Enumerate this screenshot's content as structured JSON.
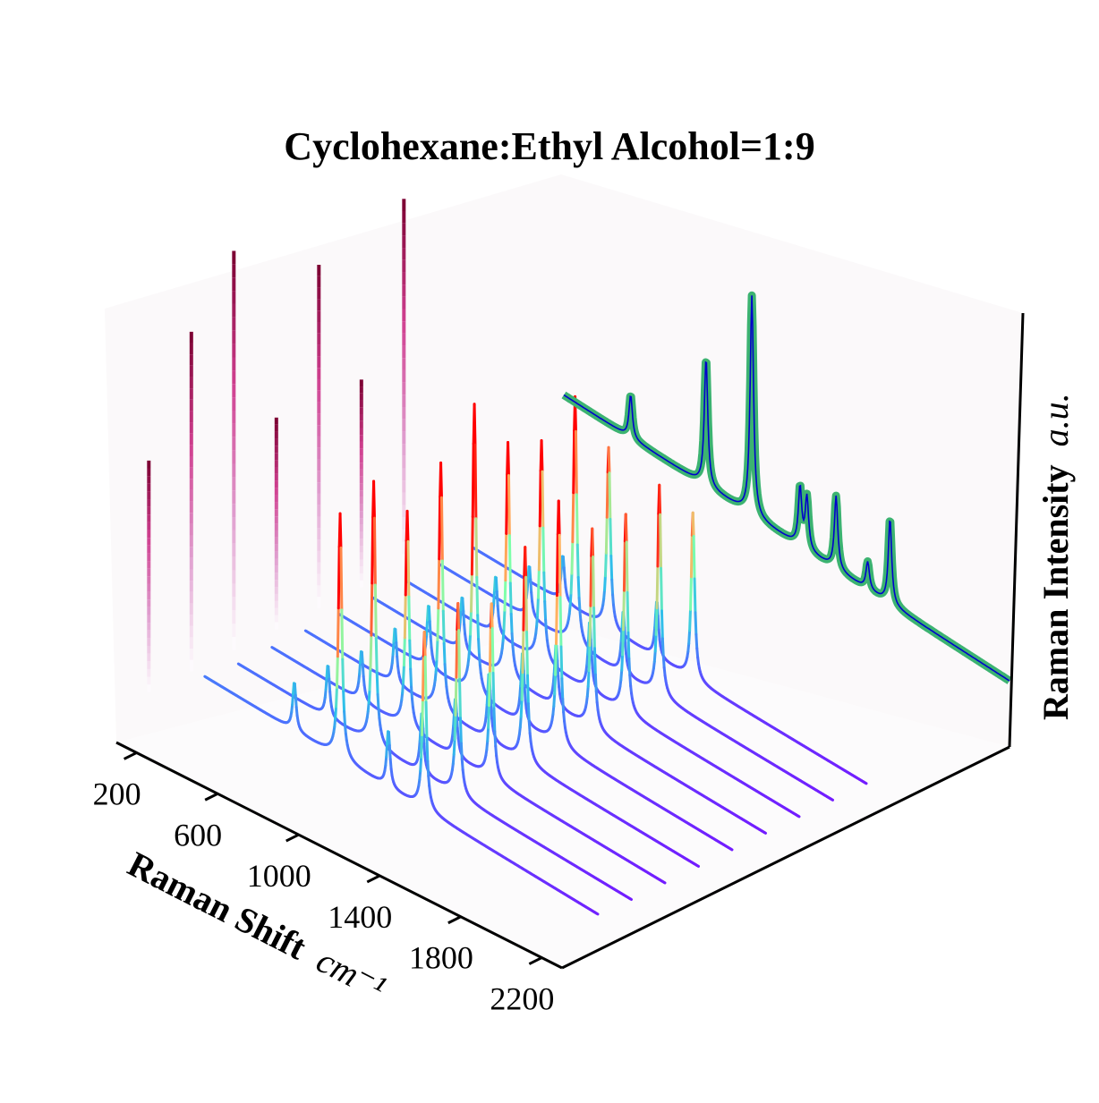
{
  "chart_data": {
    "type": "line",
    "view": "3d-waterfall",
    "title": "Cyclohexane:Ethyl Alcohol=1:9",
    "xlabel": "Raman Shift",
    "xlabel_unit": "cm⁻¹",
    "zlabel": "Raman Intensity",
    "zlabel_unit": "a.u.",
    "x_ticks": [
      200,
      600,
      1000,
      1400,
      1800,
      2200
    ],
    "xlim": [
      100,
      2300
    ],
    "depth_ticks": [],
    "zlim": [
      0,
      1
    ],
    "grid": false,
    "pane_color": "#fbf9fa",
    "colormaps": {
      "stems": [
        "#ffffff",
        "#e0a0d0",
        "#d04090",
        "#7a0030"
      ],
      "spectra": [
        "#8000ff",
        "#4f6bff",
        "#2fc1e9",
        "#7fffaa",
        "#ffb360",
        "#ff0000"
      ]
    },
    "stem_series": [
      {
        "x": 1300,
        "height": 0.58
      },
      {
        "x": 1300,
        "height": 0.85
      },
      {
        "x": 1300,
        "height": 1.0
      },
      {
        "x": 1300,
        "height": 0.53
      },
      {
        "x": 1300,
        "height": 0.86
      },
      {
        "x": 1300,
        "height": 0.52
      },
      {
        "x": 1300,
        "height": 0.92
      }
    ],
    "spectra_series": [
      {
        "offset": 0,
        "baseline": 0.38,
        "peaks": [
          [
            802,
            0.23
          ],
          [
            1028,
            0.26
          ],
          [
            1266,
            0.27
          ],
          [
            1444,
            0.34
          ],
          [
            1028,
            0.9
          ],
          [
            1444,
            0.5
          ]
        ]
      },
      {
        "offset": 1,
        "baseline": 0.36,
        "peaks": [
          [
            802,
            0.25
          ],
          [
            1028,
            0.3
          ],
          [
            1266,
            0.29
          ],
          [
            1444,
            0.36
          ],
          [
            1028,
            0.95
          ],
          [
            1444,
            0.55
          ]
        ]
      },
      {
        "offset": 2,
        "baseline": 0.36,
        "peaks": [
          [
            802,
            0.24
          ],
          [
            1028,
            0.28
          ],
          [
            1266,
            0.28
          ],
          [
            1444,
            0.35
          ],
          [
            1028,
            0.75
          ],
          [
            1444,
            0.48
          ]
        ]
      },
      {
        "offset": 3,
        "baseline": 0.36,
        "peaks": [
          [
            802,
            0.27
          ],
          [
            1028,
            0.33
          ],
          [
            1266,
            0.32
          ],
          [
            1444,
            0.42
          ],
          [
            1028,
            0.85
          ],
          [
            1444,
            0.6
          ]
        ]
      },
      {
        "offset": 4,
        "baseline": 0.36,
        "peaks": [
          [
            802,
            0.3
          ],
          [
            1028,
            0.38
          ],
          [
            1266,
            0.34
          ],
          [
            1444,
            0.46
          ],
          [
            1028,
            1.0
          ],
          [
            1444,
            0.7
          ]
        ]
      },
      {
        "offset": 5,
        "baseline": 0.36,
        "peaks": [
          [
            802,
            0.26
          ],
          [
            1028,
            0.32
          ],
          [
            1266,
            0.3
          ],
          [
            1444,
            0.4
          ],
          [
            1028,
            0.8
          ],
          [
            1444,
            0.55
          ]
        ]
      },
      {
        "offset": 6,
        "baseline": 0.36,
        "peaks": [
          [
            802,
            0.28
          ],
          [
            1028,
            0.35
          ],
          [
            1266,
            0.33
          ],
          [
            1444,
            0.44
          ],
          [
            1028,
            0.7
          ],
          [
            1444,
            0.5
          ]
        ]
      },
      {
        "offset": 7,
        "baseline": 0.36,
        "peaks": [
          [
            802,
            0.25
          ],
          [
            1028,
            0.3
          ],
          [
            1266,
            0.3
          ],
          [
            1444,
            0.38
          ],
          [
            1028,
            0.88
          ],
          [
            1444,
            0.62
          ]
        ]
      },
      {
        "offset": 8,
        "baseline": 0.36,
        "peaks": [
          [
            802,
            0.22
          ],
          [
            1028,
            0.26
          ],
          [
            1266,
            0.27
          ],
          [
            1444,
            0.34
          ],
          [
            1028,
            0.6
          ],
          [
            1444,
            0.45
          ]
        ]
      }
    ],
    "reference_spectrum": {
      "thick_color": "#3cb371",
      "thin_color": "#0000cc",
      "baseline": 0.36,
      "peaks": [
        [
          430,
          0.14
        ],
        [
          802,
          0.42
        ],
        [
          1028,
          0.72
        ],
        [
          1266,
          0.19
        ],
        [
          1300,
          0.17
        ],
        [
          1444,
          0.24
        ],
        [
          1600,
          0.09
        ],
        [
          1710,
          0.28
        ]
      ]
    }
  }
}
